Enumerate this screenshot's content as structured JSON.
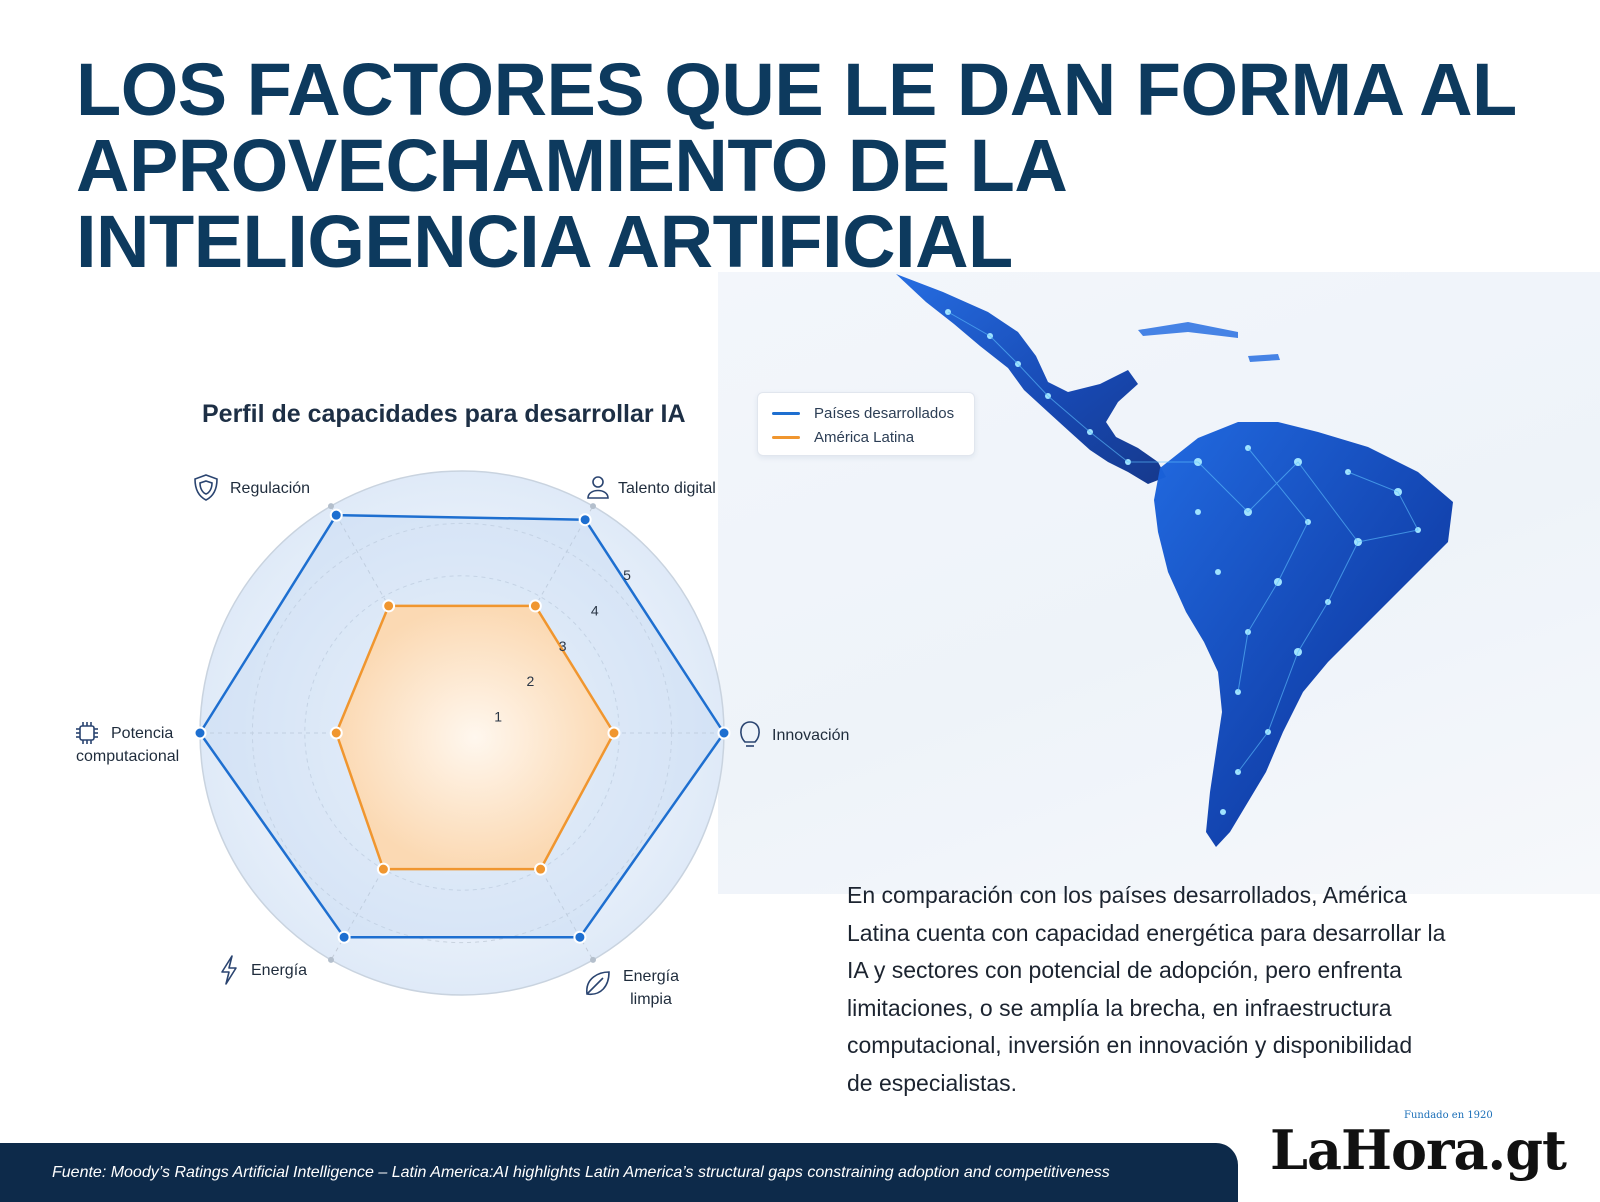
{
  "headline": {
    "line1": "LOS FACTORES QUE LE DAN FORMA AL",
    "line2": "APROVECHAMIENTO DE LA",
    "line3": "INTELIGENCIA ARTIFICIAL"
  },
  "colors": {
    "headline": "#0d3a5e",
    "developed": "#1e6fd0",
    "latam": "#f0962f",
    "footer_bg": "#0d2a4a",
    "map_glow": "#2f8bff"
  },
  "legend": {
    "developed": "Países desarrollados",
    "latam": "América Latina"
  },
  "chart_data": {
    "type": "radar",
    "title": "Perfil de capacidades para desarrollar IA",
    "axes": [
      "Talento digital",
      "Innovación",
      "Energía limpia",
      "Energía",
      "Potencia computacional",
      "Regulación"
    ],
    "axis_icons": [
      "person-icon",
      "lightbulb-icon",
      "leaf-icon",
      "lightning-icon",
      "chip-icon",
      "shield-icon"
    ],
    "radial_ticks": [
      "1",
      "2",
      "3",
      "4",
      "5"
    ],
    "rlim": [
      0,
      5
    ],
    "series": [
      {
        "name": "Países desarrollados",
        "values": [
          4.7,
          5.0,
          4.5,
          4.5,
          5.0,
          4.8
        ]
      },
      {
        "name": "América Latina",
        "values": [
          2.8,
          2.9,
          3.0,
          3.0,
          2.4,
          2.8
        ]
      }
    ],
    "legend_position": "top-right",
    "grid": true
  },
  "body_text": {
    "line1": "En comparación con los países desarrollados, América",
    "line2": "Latina cuenta con capacidad energética para desarrollar la",
    "line3": "IA y sectores con potencial de adopción, pero enfrenta",
    "line4": "limitaciones, o se amplía la brecha, en infraestructura",
    "line5": "computacional, inversión en innovación y disponibilidad",
    "line6": "de especialistas."
  },
  "footer": {
    "source": "Fuente: Moody’s Ratings Artificial Intelligence – Latin America:AI highlights Latin America’s structural gaps constraining adoption and competitiveness"
  },
  "brand": {
    "name": "LaHora.gt",
    "tagline": "Fundado en 1920"
  }
}
